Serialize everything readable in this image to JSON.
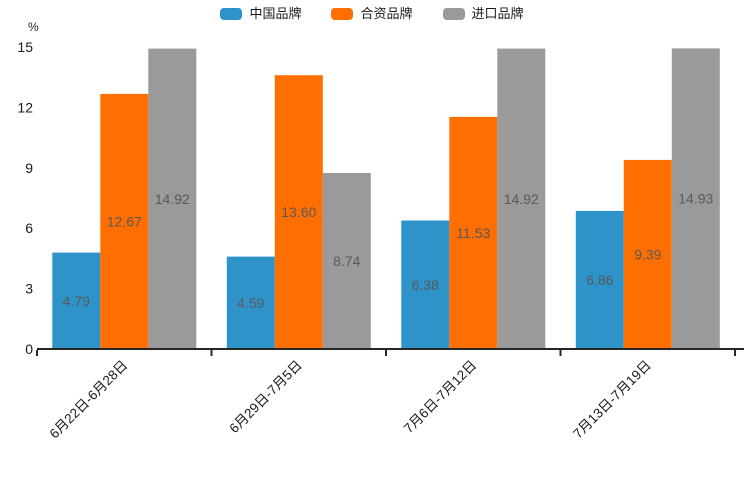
{
  "chart_data": {
    "type": "bar",
    "title": "",
    "unit_label": "%",
    "categories": [
      "6月22日-6月28日",
      "6月29日-7月5日",
      "7月6日-7月12日",
      "7月13日-7月19日"
    ],
    "series": [
      {
        "name": "中国品牌",
        "color": "#2E93C8",
        "values": [
          4.79,
          4.59,
          6.38,
          6.86
        ]
      },
      {
        "name": "合资品牌",
        "color": "#FF6E00",
        "values": [
          12.67,
          13.6,
          11.53,
          9.39
        ]
      },
      {
        "name": "进口品牌",
        "color": "#9A9A9A",
        "values": [
          14.92,
          8.74,
          14.92,
          14.93
        ]
      }
    ],
    "ylim": [
      0,
      15
    ],
    "yticks": [
      0,
      3,
      6,
      9,
      12,
      15
    ],
    "grid": false,
    "legend_position": "top-center",
    "value_labels": "inside-middle",
    "value_label_color": "#595959",
    "axis_color": "#262626",
    "tick_label_color": "#1a1a1a"
  }
}
